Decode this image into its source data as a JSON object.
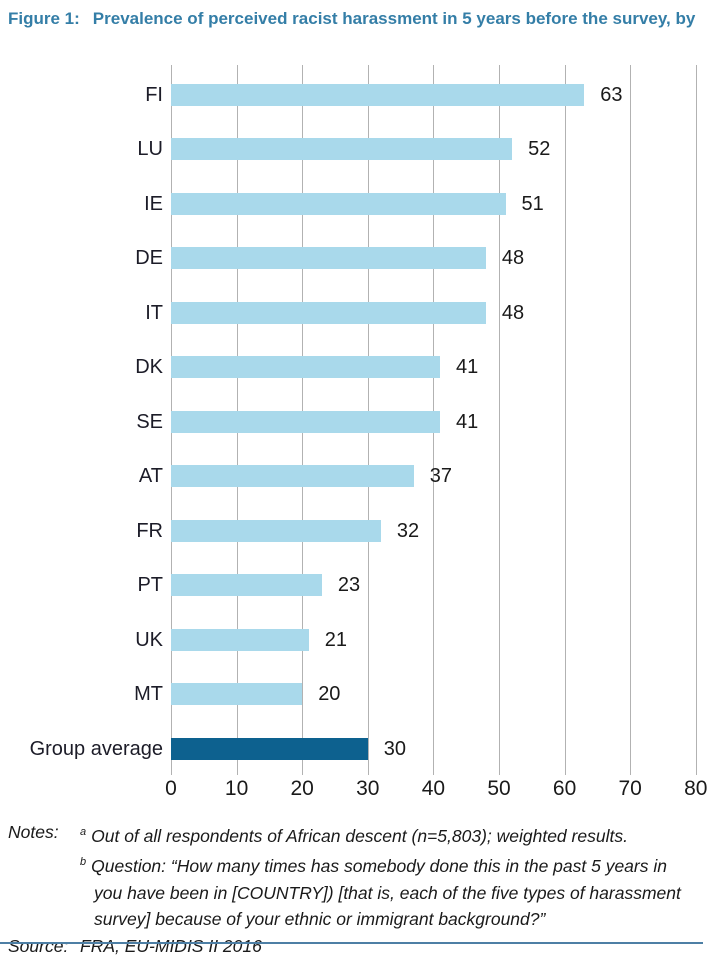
{
  "figure": {
    "label": "Figure 1:",
    "title": "Prevalence of perceived racist harassment in 5 years before the survey, by"
  },
  "chart_data": {
    "type": "bar",
    "orientation": "horizontal",
    "categories": [
      "FI",
      "LU",
      "IE",
      "DE",
      "IT",
      "DK",
      "SE",
      "AT",
      "FR",
      "PT",
      "UK",
      "MT",
      "Group average"
    ],
    "values": [
      63,
      52,
      51,
      48,
      48,
      41,
      41,
      37,
      32,
      23,
      21,
      20,
      30
    ],
    "highlight_category": "Group average",
    "xlim": [
      0,
      80
    ],
    "xticks": [
      0,
      10,
      20,
      30,
      40,
      50,
      60,
      70,
      80
    ],
    "grid": true,
    "legend": false,
    "bar_color": "#a9d9eb",
    "highlight_color": "#0d618f"
  },
  "notes": {
    "rows": [
      {
        "label": "Notes:",
        "sup": "a",
        "indent": false,
        "text": "Out of all respondents of African descent (n=5,803); weighted results."
      },
      {
        "label": "",
        "sup": "b",
        "indent": false,
        "text": "Question: “How many times has somebody done this in the past 5 years in"
      },
      {
        "label": "",
        "sup": "",
        "indent": true,
        "text": "you have been in [COUNTRY]) [that is, each of the five types of harassment"
      },
      {
        "label": "",
        "sup": "",
        "indent": true,
        "text": "survey] because of your ethnic or immigrant background?”"
      },
      {
        "label": "Source:",
        "sup": "",
        "indent": false,
        "text": "FRA, EU-MIDIS II 2016"
      }
    ]
  },
  "colors": {
    "title": "#347ea7",
    "gridline": "#b2b2b2",
    "text": "#1a1a1a",
    "divider": "#4d7fa5"
  }
}
